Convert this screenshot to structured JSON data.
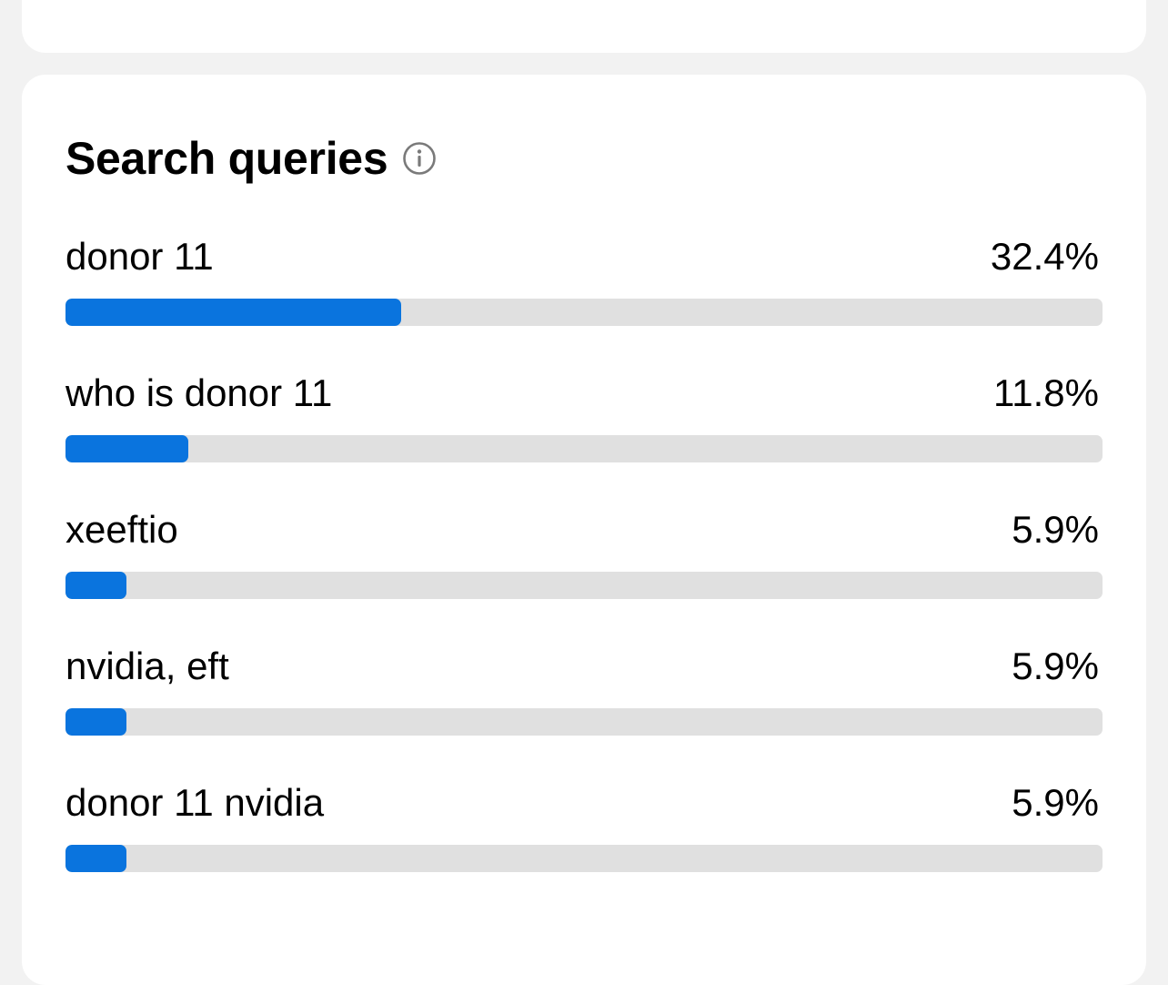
{
  "section": {
    "title": "Search queries",
    "info_icon": "info-circle-icon"
  },
  "colors": {
    "bar_fill": "#0a74de",
    "bar_track": "#e0e0e0",
    "card": "#ffffff",
    "background": "#f2f2f2"
  },
  "queries": [
    {
      "label": "donor 11",
      "percent_label": "32.4%",
      "percent": 32.4
    },
    {
      "label": "who is donor 11",
      "percent_label": "11.8%",
      "percent": 11.8
    },
    {
      "label": "xeeftio",
      "percent_label": "5.9%",
      "percent": 5.9
    },
    {
      "label": "nvidia, eft",
      "percent_label": "5.9%",
      "percent": 5.9
    },
    {
      "label": "donor 11 nvidia",
      "percent_label": "5.9%",
      "percent": 5.9
    }
  ]
}
